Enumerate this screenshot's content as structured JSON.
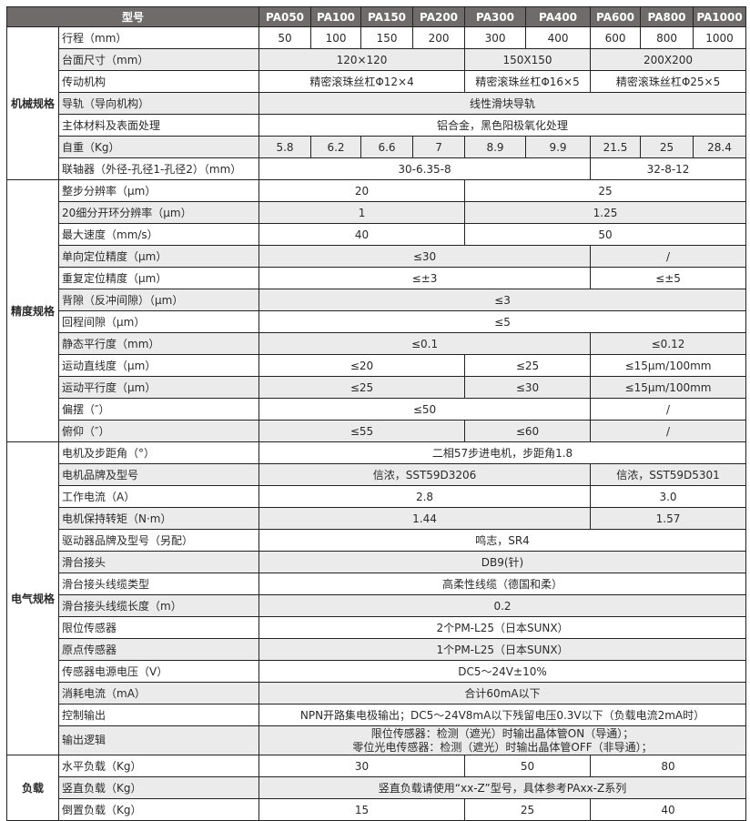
{
  "header": {
    "title": "型号",
    "models": [
      "PA050",
      "PA100",
      "PA150",
      "PA200",
      "PA300",
      "PA400",
      "PA600",
      "PA800",
      "PA1000"
    ]
  },
  "groups": [
    {
      "name": "机械规格",
      "rows": [
        {
          "label": "行程（mm）",
          "cells": [
            [
              "50",
              1
            ],
            [
              "100",
              1
            ],
            [
              "150",
              1
            ],
            [
              "200",
              1
            ],
            [
              "300",
              1
            ],
            [
              "400",
              1
            ],
            [
              "600",
              1
            ],
            [
              "800",
              1
            ],
            [
              "1000",
              1
            ]
          ]
        },
        {
          "label": "台面尺寸（mm）",
          "cells": [
            [
              "120×120",
              4
            ],
            [
              "150X150",
              2
            ],
            [
              "200X200",
              3
            ]
          ]
        },
        {
          "label": "传动机构",
          "cells": [
            [
              "精密滚珠丝杠Φ12×4",
              4
            ],
            [
              "精密滚珠丝杠Φ16×5",
              2
            ],
            [
              "精密滚珠丝杠Φ25×5",
              3
            ]
          ]
        },
        {
          "label": "导轨（导向机构）",
          "cells": [
            [
              "线性滑块导轨",
              9
            ]
          ]
        },
        {
          "label": "主体材料及表面处理",
          "cells": [
            [
              "铝合金，黑色阳极氧化处理",
              9
            ]
          ]
        },
        {
          "label": "自重（Kg）",
          "cells": [
            [
              "5.8",
              1
            ],
            [
              "6.2",
              1
            ],
            [
              "6.6",
              1
            ],
            [
              "7",
              1
            ],
            [
              "8.9",
              1
            ],
            [
              "9.9",
              1
            ],
            [
              "21.5",
              1
            ],
            [
              "25",
              1
            ],
            [
              "28.4",
              1
            ]
          ]
        },
        {
          "label": "联轴器（外径-孔径1-孔径2）（mm）",
          "cells": [
            [
              "30-6.35-8",
              6
            ],
            [
              "32-8-12",
              3
            ]
          ]
        }
      ]
    },
    {
      "name": "精度规格",
      "rows": [
        {
          "label": "整步分辨率（μm）",
          "cells": [
            [
              "20",
              4
            ],
            [
              "25",
              5
            ]
          ]
        },
        {
          "label": "20细分开环分辨率（μm）",
          "cells": [
            [
              "1",
              4
            ],
            [
              "1.25",
              5
            ]
          ]
        },
        {
          "label": "最大速度（mm/s）",
          "cells": [
            [
              "40",
              4
            ],
            [
              "50",
              5
            ]
          ]
        },
        {
          "label": "单向定位精度（μm）",
          "cells": [
            [
              "≤30",
              6
            ],
            [
              "/",
              3
            ]
          ]
        },
        {
          "label": "重复定位精度（μm）",
          "cells": [
            [
              "≤±3",
              6
            ],
            [
              "≤±5",
              3
            ]
          ]
        },
        {
          "label": "背隙（反冲间隙）（μm）",
          "cells": [
            [
              "≤3",
              9
            ]
          ]
        },
        {
          "label": "回程间隙（μm）",
          "cells": [
            [
              "≤5",
              9
            ]
          ]
        },
        {
          "label": "静态平行度（mm）",
          "cells": [
            [
              "≤0.1",
              6
            ],
            [
              "≤0.12",
              3
            ]
          ]
        },
        {
          "label": "运动直线度（μm）",
          "cells": [
            [
              "≤20",
              4
            ],
            [
              "≤25",
              2
            ],
            [
              "≤15μm/100mm",
              3
            ]
          ]
        },
        {
          "label": "运动平行度（μm）",
          "cells": [
            [
              "≤25",
              4
            ],
            [
              "≤30",
              2
            ],
            [
              "≤15μm/100mm",
              3
            ]
          ]
        },
        {
          "label": "偏摆（″）",
          "cells": [
            [
              "≤50",
              6
            ],
            [
              "/",
              3
            ]
          ]
        },
        {
          "label": "俯仰（″）",
          "cells": [
            [
              "≤55",
              4
            ],
            [
              "≤60",
              2
            ],
            [
              "/",
              3
            ]
          ]
        }
      ]
    },
    {
      "name": "电气规格",
      "rows": [
        {
          "label": "电机及步距角（°）",
          "cells": [
            [
              "二相57步进电机，步距角1.8",
              9
            ]
          ]
        },
        {
          "label": "电机品牌及型号",
          "cells": [
            [
              "信浓，SST59D3206",
              6
            ],
            [
              "信浓，SST59D5301",
              3
            ]
          ]
        },
        {
          "label": "工作电流（A）",
          "cells": [
            [
              "2.8",
              6
            ],
            [
              "3.0",
              3
            ]
          ]
        },
        {
          "label": "电机保持转矩（N·m）",
          "cells": [
            [
              "1.44",
              6
            ],
            [
              "1.57",
              3
            ]
          ]
        },
        {
          "label": "驱动器品牌及型号（另配）",
          "cells": [
            [
              "鸣志，SR4",
              9
            ]
          ]
        },
        {
          "label": "滑台接头",
          "cells": [
            [
              "DB9(针)",
              9
            ]
          ]
        },
        {
          "label": "滑台接头线缆类型",
          "cells": [
            [
              "高柔性线缆（德国和柔）",
              9
            ]
          ]
        },
        {
          "label": "滑台接头线缆长度（m）",
          "cells": [
            [
              "0.2",
              9
            ]
          ]
        },
        {
          "label": "限位传感器",
          "cells": [
            [
              "2个PM-L25（日本SUNX）",
              9
            ]
          ]
        },
        {
          "label": "原点传感器",
          "cells": [
            [
              "1个PM-L25（日本SUNX）",
              9
            ]
          ]
        },
        {
          "label": "传感器电源电压（V）",
          "cells": [
            [
              "DC5～24V±10%",
              9
            ]
          ]
        },
        {
          "label": "消耗电流（mA）",
          "cells": [
            [
              "合计60mA以下",
              9
            ]
          ]
        },
        {
          "label": "控制输出",
          "cells": [
            [
              "NPN开路集电极输出；DC5～24V8mA以下残留电压0.3V以下（负载电流2mA时）",
              9
            ]
          ]
        },
        {
          "label": "输出逻辑",
          "tall": true,
          "cells": [
            [
              "限位传感器：检测（遮光）时输出晶体管ON（导通）；\n零位光电传感器：检测（遮光）时输出晶体管OFF（非导通）；",
              9
            ]
          ]
        }
      ]
    },
    {
      "name": "负载",
      "rows": [
        {
          "label": "水平负载（Kg）",
          "cells": [
            [
              "30",
              4
            ],
            [
              "50",
              2
            ],
            [
              "80",
              3
            ]
          ]
        },
        {
          "label": "竖直负载（Kg）",
          "cells": [
            [
              "竖直负载请使用“xx-Z”型号，具体参考PAxx-Z系列",
              9
            ]
          ]
        },
        {
          "label": "倒置负载（Kg）",
          "cells": [
            [
              "15",
              4
            ],
            [
              "25",
              2
            ],
            [
              "40",
              3
            ]
          ]
        }
      ]
    }
  ]
}
